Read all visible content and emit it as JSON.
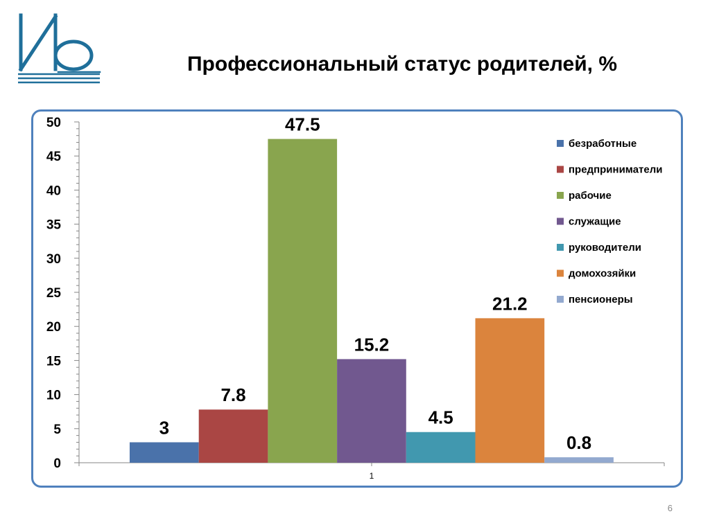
{
  "slide": {
    "title": "Профессиональный  статус родителей, %",
    "number": "6"
  },
  "logo": {
    "text": "ИВ",
    "color": "#1f6f9a"
  },
  "chart_data": {
    "type": "bar",
    "categories": [
      "1"
    ],
    "series": [
      {
        "name": "безработные",
        "values": [
          3
        ],
        "label": "3",
        "color": "#4a72aa"
      },
      {
        "name": "предприниматели",
        "values": [
          7.8
        ],
        "label": "7.8",
        "color": "#aa4644"
      },
      {
        "name": "рабочие",
        "values": [
          47.5
        ],
        "label": "47.5",
        "color": "#89a54e"
      },
      {
        "name": "служащие",
        "values": [
          15.2
        ],
        "label": "15.2",
        "color": "#71588f"
      },
      {
        "name": "руководители",
        "values": [
          4.5
        ],
        "label": "4.5",
        "color": "#4198af"
      },
      {
        "name": "домохозяйки",
        "values": [
          21.2
        ],
        "label": "21.2",
        "color": "#db843d"
      },
      {
        "name": "пенсионеры",
        "values": [
          0.8
        ],
        "label": "0.8",
        "color": "#93a9cf"
      }
    ],
    "ylim": [
      0,
      50
    ],
    "yticks": [
      "0",
      "5",
      "10",
      "15",
      "20",
      "25",
      "30",
      "35",
      "40",
      "45",
      "50"
    ],
    "title": "",
    "xlabel": "",
    "ylabel": "",
    "grid": false,
    "legend": "right"
  }
}
